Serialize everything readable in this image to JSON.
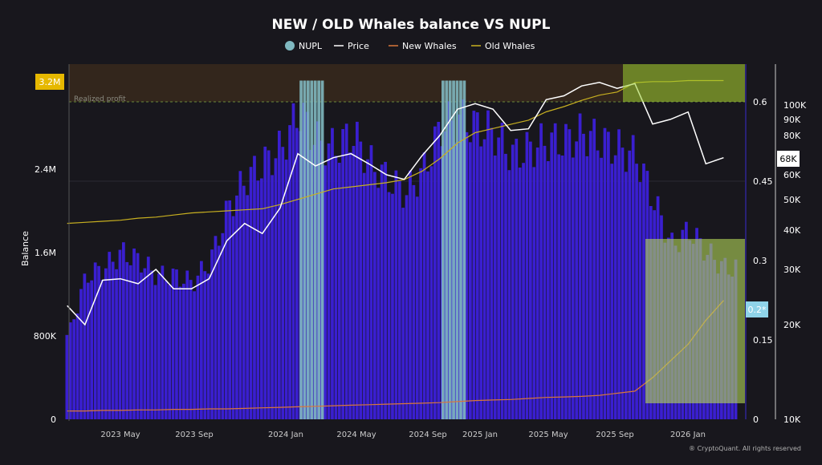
{
  "chart_data": {
    "type": "bar+line",
    "title": "NEW / OLD Whales balance VS NUPL",
    "legend": {
      "placement": "top-center",
      "entries": [
        {
          "name": "NUPL",
          "color": "#7fb8c0",
          "symbol": "dot"
        },
        {
          "name": "Price",
          "color": "#ffffff",
          "symbol": "line"
        },
        {
          "name": "New Whales",
          "color": "#d9773a",
          "symbol": "line"
        },
        {
          "name": "Old Whales",
          "color": "#c8b020",
          "symbol": "line"
        }
      ]
    },
    "ylabel": "Balance",
    "left_axis": {
      "ticks": [
        "0",
        "800K",
        "1.6M",
        "2.4M"
      ],
      "range": [
        0,
        3400000
      ],
      "current_badge": "3.2M"
    },
    "nupl_axis": {
      "ticks": [
        "0",
        "0.15",
        "0.3",
        "0.45",
        "0.6"
      ],
      "range": [
        0,
        0.66
      ],
      "current_badge": "0.2*"
    },
    "price_axis": {
      "scale": "log",
      "ticks": [
        "10K",
        "20K",
        "30K",
        "40K",
        "50K",
        "60K",
        "80K",
        "90K",
        "100K"
      ],
      "range": [
        10000,
        130000
      ],
      "current_badge": "68K"
    },
    "x_ticks": [
      "2023 May",
      "2023 Sep",
      "2024 Jan",
      "2024 May",
      "2024 Sep",
      "2025 Jan",
      "2025 May",
      "2025 Sep",
      "2026 Jan"
    ],
    "annotation": "Realized profit",
    "watermark": "® CryptoQuant. All rights reserved",
    "dates": [
      "2023-02",
      "2023-03",
      "2023-04",
      "2023-05",
      "2023-06",
      "2023-07",
      "2023-08",
      "2023-09",
      "2023-10",
      "2023-11",
      "2023-12",
      "2024-01",
      "2024-02",
      "2024-03",
      "2024-04",
      "2024-05",
      "2024-06",
      "2024-07",
      "2024-08",
      "2024-09",
      "2024-10",
      "2024-11",
      "2024-12",
      "2025-01",
      "2025-02",
      "2025-03",
      "2025-04",
      "2025-05",
      "2025-06",
      "2025-07",
      "2025-08",
      "2025-09",
      "2025-10",
      "2025-11",
      "2025-12",
      "2026-01",
      "2026-02",
      "2026-03"
    ],
    "series": [
      {
        "name": "NUPL",
        "type": "bar",
        "highlight_ranges": [
          [
            "2024-03",
            "2024-04"
          ],
          [
            "2024-11",
            "2024-12"
          ]
        ]
      },
      {
        "name": "Balance",
        "type": "bar",
        "color": "#3a1fd0",
        "values": [
          870000,
          1480000,
          1560000,
          1720000,
          1640000,
          1480000,
          1480000,
          1410000,
          1640000,
          2180000,
          2480000,
          2640000,
          2790000,
          3180000,
          2870000,
          2790000,
          2950000,
          2640000,
          2480000,
          2330000,
          2560000,
          3020000,
          3100000,
          3020000,
          2950000,
          2720000,
          2790000,
          2870000,
          2870000,
          2950000,
          2870000,
          2790000,
          2720000,
          2250000,
          1790000,
          1950000,
          1720000,
          1560000
        ]
      },
      {
        "name": "Price",
        "type": "line",
        "color": "#ffffff",
        "values": [
          23000,
          20000,
          27700,
          28000,
          27000,
          30000,
          26000,
          26000,
          28000,
          37000,
          42000,
          39000,
          47000,
          70000,
          64000,
          68000,
          70000,
          65000,
          60000,
          58000,
          69000,
          80000,
          97000,
          101000,
          97000,
          83000,
          84000,
          104000,
          107000,
          115000,
          118000,
          113000,
          117000,
          87000,
          90000,
          95000,
          65000,
          68000
        ]
      },
      {
        "name": "New Whales",
        "type": "line",
        "color": "#d9773a",
        "values": [
          80000,
          80000,
          85000,
          85000,
          90000,
          90000,
          95000,
          95000,
          100000,
          100000,
          105000,
          110000,
          115000,
          120000,
          125000,
          130000,
          135000,
          140000,
          145000,
          150000,
          155000,
          160000,
          170000,
          180000,
          185000,
          190000,
          200000,
          210000,
          215000,
          220000,
          230000,
          250000,
          270000,
          400000,
          560000,
          720000,
          950000,
          1140000
        ]
      },
      {
        "name": "Old Whales",
        "type": "line",
        "color": "#c8b020",
        "values": [
          1880000,
          1890000,
          1900000,
          1910000,
          1930000,
          1940000,
          1960000,
          1980000,
          1990000,
          2000000,
          2010000,
          2020000,
          2060000,
          2110000,
          2160000,
          2210000,
          2230000,
          2250000,
          2270000,
          2300000,
          2380000,
          2500000,
          2650000,
          2750000,
          2790000,
          2830000,
          2870000,
          2950000,
          3000000,
          3060000,
          3110000,
          3140000,
          3230000,
          3240000,
          3240000,
          3250000,
          3250000,
          3250000
        ]
      }
    ]
  }
}
